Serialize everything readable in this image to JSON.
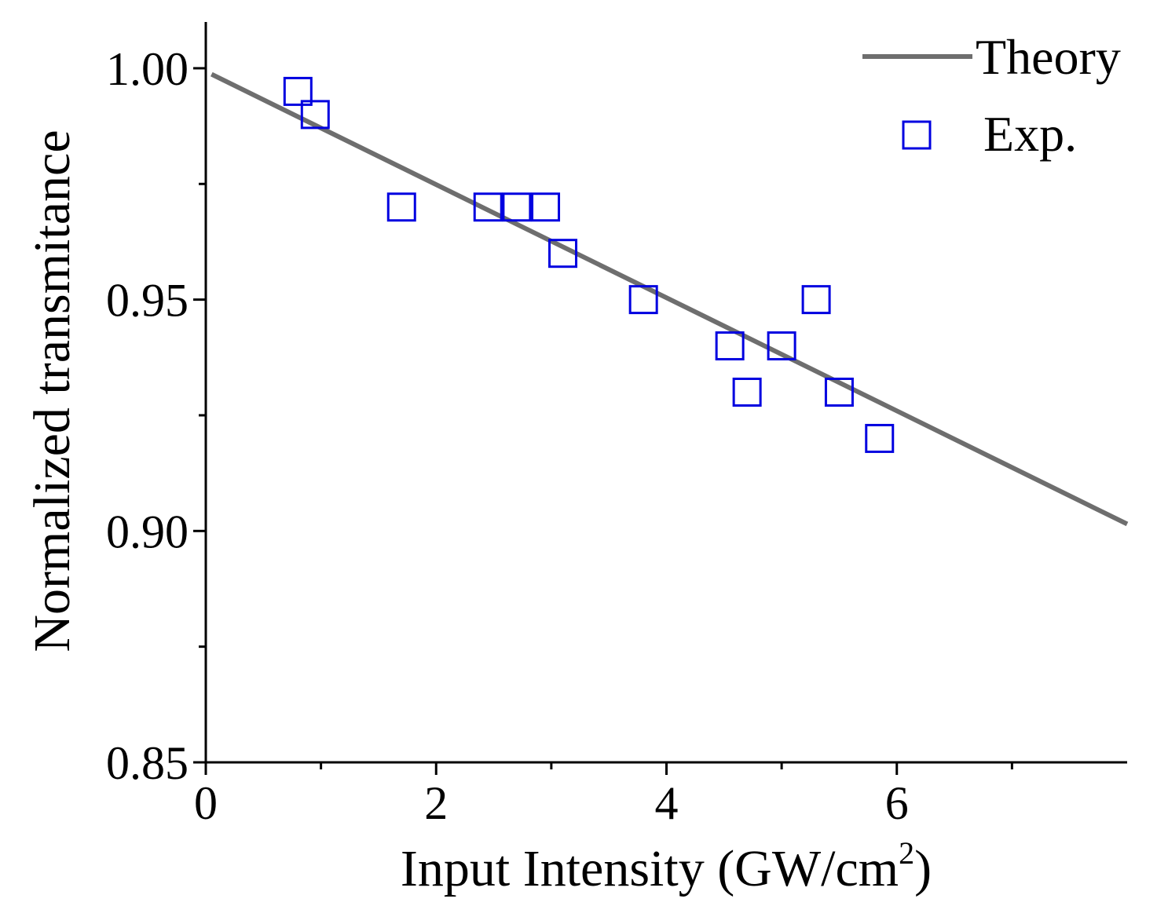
{
  "chart_data": {
    "type": "scatter",
    "xlabel": "Input Intensity (GW/cm",
    "xlabel_superscript": "2",
    "xlabel_close": ")",
    "ylabel": "Normalized transmitance",
    "xlim": [
      0,
      8
    ],
    "ylim": [
      0.85,
      1.01
    ],
    "x_ticks": [
      0,
      2,
      4,
      6
    ],
    "x_tick_labels": [
      "0",
      "2",
      "4",
      "6"
    ],
    "x_minor_ticks": [
      1,
      3,
      5,
      7
    ],
    "y_ticks": [
      0.85,
      0.9,
      0.95,
      1.0
    ],
    "y_tick_labels": [
      "0.85",
      "0.90",
      "0.95",
      "1.00"
    ],
    "y_minor_ticks": [
      0.875,
      0.925,
      0.975
    ],
    "grid": false,
    "legend_position": "top-right",
    "series": [
      {
        "name": "Theory",
        "kind": "line",
        "color": "#6e6e6e",
        "x": [
          0.05,
          8.0
        ],
        "y": [
          0.9987,
          0.9015
        ]
      },
      {
        "name": "Exp.",
        "kind": "scatter",
        "marker": "open-square",
        "color": "#0000e0",
        "x": [
          0.8,
          0.95,
          1.7,
          2.45,
          2.7,
          2.95,
          3.1,
          3.8,
          4.55,
          4.7,
          5.0,
          5.3,
          5.5,
          5.85
        ],
        "y": [
          0.995,
          0.99,
          0.97,
          0.97,
          0.97,
          0.97,
          0.96,
          0.95,
          0.94,
          0.93,
          0.94,
          0.95,
          0.93,
          0.92
        ]
      }
    ]
  }
}
